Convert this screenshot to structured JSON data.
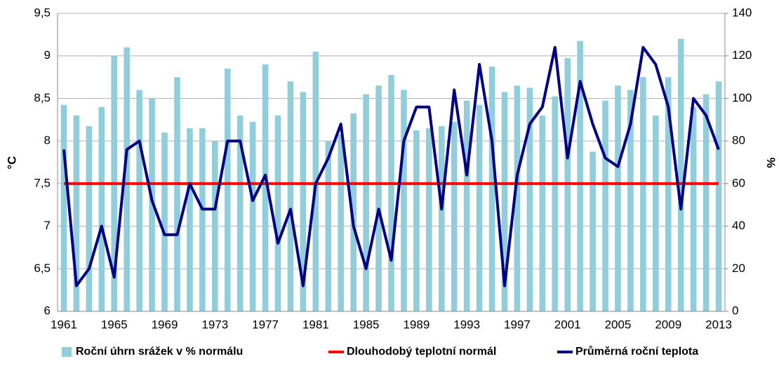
{
  "chart_data": {
    "type": "bar-line",
    "y_label": "°C",
    "y2_label": "%",
    "categories": [
      "1961",
      null,
      null,
      null,
      "1965",
      null,
      null,
      null,
      "1969",
      null,
      null,
      null,
      "1973",
      null,
      null,
      null,
      "1977",
      null,
      null,
      null,
      "1981",
      null,
      null,
      null,
      "1985",
      null,
      null,
      null,
      "1989",
      null,
      null,
      null,
      "1993",
      null,
      null,
      null,
      "1997",
      null,
      null,
      null,
      "2001",
      null,
      null,
      null,
      "2005",
      null,
      null,
      null,
      "2009",
      null,
      null,
      null,
      "2013"
    ],
    "ylim": [
      6,
      9.5
    ],
    "yticks": [
      6,
      {
        "value": 6.5,
        "label": "6,5"
      },
      7,
      {
        "value": 7.5,
        "label": "7,5"
      },
      8,
      {
        "value": 8.5,
        "label": "8,5"
      },
      9,
      {
        "value": 9.5,
        "label": "9,5"
      }
    ],
    "y2lim": [
      0,
      140
    ],
    "y2ticks": [
      0,
      20,
      40,
      60,
      80,
      100,
      120,
      140
    ],
    "grid": true,
    "legend": "bottom",
    "series": [
      {
        "name": "Roční úhrn srážek v % normálu",
        "color": "#92cddc",
        "type": "bar",
        "axis": "y2",
        "values": [
          97,
          92,
          87,
          96,
          120,
          124,
          104,
          100,
          84,
          110,
          86,
          86,
          80,
          114,
          92,
          89,
          116,
          92,
          108,
          103,
          122,
          80,
          83,
          93,
          102,
          106,
          111,
          104,
          85,
          86,
          87,
          89,
          99,
          97,
          115,
          103,
          106,
          105,
          92,
          101,
          119,
          127,
          75,
          99,
          106,
          104,
          110,
          92,
          110,
          128,
          96,
          102,
          108
        ]
      },
      {
        "name": "Dlouhodobý teplotní normál",
        "color": "#ff0000",
        "type": "line",
        "axis": "y",
        "values": [
          7.5,
          7.5,
          7.5,
          7.5,
          7.5,
          7.5,
          7.5,
          7.5,
          7.5,
          7.5,
          7.5,
          7.5,
          7.5,
          7.5,
          7.5,
          7.5,
          7.5,
          7.5,
          7.5,
          7.5,
          7.5,
          7.5,
          7.5,
          7.5,
          7.5,
          7.5,
          7.5,
          7.5,
          7.5,
          7.5,
          7.5,
          7.5,
          7.5,
          7.5,
          7.5,
          7.5,
          7.5,
          7.5,
          7.5,
          7.5,
          7.5,
          7.5,
          7.5,
          7.5,
          7.5,
          7.5,
          7.5,
          7.5,
          7.5,
          7.5,
          7.5,
          7.5,
          7.5
        ]
      },
      {
        "name": "Průměrná roční teplota",
        "color": "#000080",
        "type": "line",
        "axis": "y",
        "values": [
          7.9,
          6.3,
          6.5,
          7.0,
          6.4,
          7.9,
          8.0,
          7.3,
          6.9,
          6.9,
          7.5,
          7.2,
          7.2,
          8.0,
          8.0,
          7.3,
          7.6,
          6.8,
          7.2,
          6.3,
          7.5,
          7.8,
          8.2,
          7.0,
          6.5,
          7.2,
          6.6,
          8.0,
          8.4,
          8.4,
          7.2,
          8.6,
          7.6,
          8.9,
          8.0,
          6.3,
          7.6,
          8.2,
          8.4,
          9.1,
          7.8,
          8.7,
          8.2,
          7.8,
          7.7,
          8.2,
          9.1,
          8.9,
          8.4,
          7.2,
          8.5,
          8.3,
          7.9
        ]
      }
    ]
  }
}
